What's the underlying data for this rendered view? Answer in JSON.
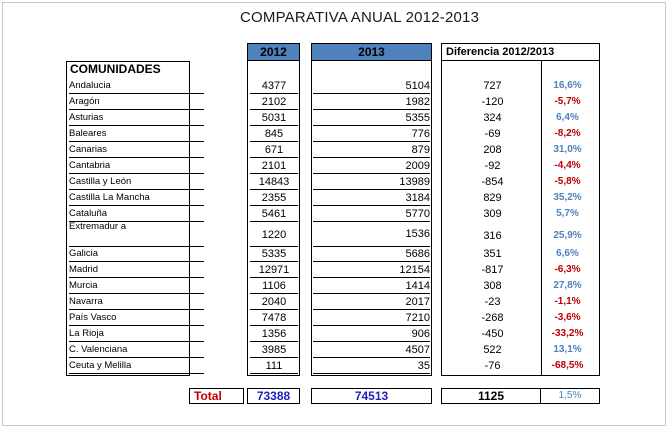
{
  "title": "COMPARATIVA ANUAL 2012-2013",
  "headers": {
    "col2012": "2012",
    "col2013": "2013",
    "diff": "Diferencia 2012/2013",
    "comunidades": "COMUNIDADES"
  },
  "rows": [
    {
      "name": "Andalucia",
      "y2012": "4377",
      "y2013": "5104",
      "diff": "727",
      "pct": "16,6%",
      "sign": "pos"
    },
    {
      "name": "Aragón",
      "y2012": "2102",
      "y2013": "1982",
      "diff": "-120",
      "pct": "-5,7%",
      "sign": "neg"
    },
    {
      "name": "Asturias",
      "y2012": "5031",
      "y2013": "5355",
      "diff": "324",
      "pct": "6,4%",
      "sign": "pos"
    },
    {
      "name": "Baleares",
      "y2012": "845",
      "y2013": "776",
      "diff": "-69",
      "pct": "-8,2%",
      "sign": "neg"
    },
    {
      "name": "Canarias",
      "y2012": "671",
      "y2013": "879",
      "diff": "208",
      "pct": "31,0%",
      "sign": "pos"
    },
    {
      "name": "Cantabria",
      "y2012": "2101",
      "y2013": "2009",
      "diff": "-92",
      "pct": "-4,4%",
      "sign": "neg"
    },
    {
      "name": "Castilla y León",
      "y2012": "14843",
      "y2013": "13989",
      "diff": "-854",
      "pct": "-5,8%",
      "sign": "neg"
    },
    {
      "name": "Castilla La Mancha",
      "y2012": "2355",
      "y2013": "3184",
      "diff": "829",
      "pct": "35,2%",
      "sign": "pos"
    },
    {
      "name": "Cataluña",
      "y2012": "5461",
      "y2013": "5770",
      "diff": "309",
      "pct": "5,7%",
      "sign": "pos"
    },
    {
      "name": "Extremadur a",
      "y2012": "1220",
      "y2013": "1536",
      "diff": "316",
      "pct": "25,9%",
      "sign": "pos"
    },
    {
      "name": "Galicia",
      "y2012": "5335",
      "y2013": "5686",
      "diff": "351",
      "pct": "6,6%",
      "sign": "pos"
    },
    {
      "name": "Madrid",
      "y2012": "12971",
      "y2013": "12154",
      "diff": "-817",
      "pct": "-6,3%",
      "sign": "neg"
    },
    {
      "name": "Murcia",
      "y2012": "1106",
      "y2013": "1414",
      "diff": "308",
      "pct": "27,8%",
      "sign": "pos"
    },
    {
      "name": "Navarra",
      "y2012": "2040",
      "y2013": "2017",
      "diff": "-23",
      "pct": "-1,1%",
      "sign": "neg"
    },
    {
      "name": "País Vasco",
      "y2012": "7478",
      "y2013": "7210",
      "diff": "-268",
      "pct": "-3,6%",
      "sign": "neg"
    },
    {
      "name": "La Rioja",
      "y2012": "1356",
      "y2013": "906",
      "diff": "-450",
      "pct": "-33,2%",
      "sign": "neg"
    },
    {
      "name": "C. Valenciana",
      "y2012": "3985",
      "y2013": "4507",
      "diff": "522",
      "pct": "13,1%",
      "sign": "pos"
    },
    {
      "name": "Ceuta y Melilla",
      "y2012": "111",
      "y2013": "35",
      "diff": "-76",
      "pct": "-68,5%",
      "sign": "neg"
    }
  ],
  "total": {
    "label": "Total",
    "y2012": "73388",
    "y2013": "74513",
    "diff": "1125",
    "pct": "1,5%"
  },
  "colors": {
    "header_blue": "#4f81bd",
    "positive": "#4f81bd",
    "negative": "#c00000",
    "total_label": "#c00000",
    "total_values": "#1f1fbf"
  }
}
